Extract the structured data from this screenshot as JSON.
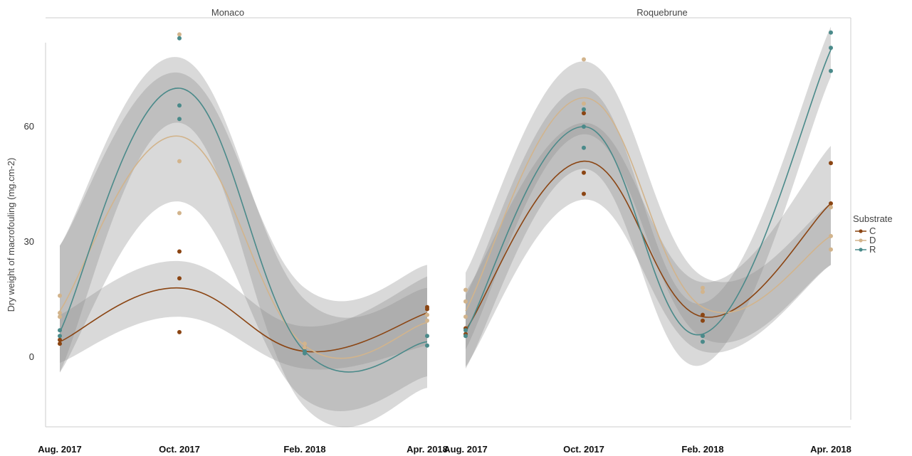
{
  "chart_data": {
    "type": "line",
    "ylabel": "Dry weight of macrofouling (mg.cm-2)",
    "xlabel": "",
    "y_ticks": [
      "0",
      "30",
      "60"
    ],
    "y_tick_values": [
      0,
      30,
      60
    ],
    "ylim": [
      -15,
      82
    ],
    "grid": false,
    "legend": {
      "title": "Substrate",
      "position": "right",
      "entries": [
        {
          "name": "C",
          "color": "#8B4513"
        },
        {
          "name": "D",
          "color": "#D2B48C"
        },
        {
          "name": "R",
          "color": "#4A8A8A"
        }
      ]
    },
    "facets": [
      {
        "label": "Monaco",
        "x_ticks": [
          "Aug. 2017",
          "Oct. 2017",
          "Feb. 2018",
          "Apr. 2018"
        ],
        "series": [
          {
            "name": "C",
            "curve": [
              4,
              18,
              1.5,
              11.5
            ],
            "band_lo": [
              -1.5,
              10.5,
              -3,
              3
            ],
            "band_hi": [
              11,
              25,
              8,
              21
            ],
            "points": [
              [
                0,
                3.5
              ],
              [
                0,
                4.5
              ],
              [
                1,
                6.5
              ],
              [
                1,
                20.5
              ],
              [
                1,
                27.5
              ],
              [
                2,
                1.5
              ],
              [
                2,
                2.5
              ],
              [
                3,
                12.5
              ],
              [
                3,
                13
              ]
            ]
          },
          {
            "name": "D",
            "curve": [
              12,
              57.5,
              3,
              9
            ],
            "band_lo": [
              -4,
              40.5,
              -11,
              -5
            ],
            "band_hi": [
              29,
              74,
              18,
              24
            ],
            "points": [
              [
                0,
                10.5
              ],
              [
                0,
                11.5
              ],
              [
                0,
                16
              ],
              [
                1,
                37.5
              ],
              [
                1,
                51
              ],
              [
                1,
                84
              ],
              [
                2,
                2.5
              ],
              [
                2,
                3.5
              ],
              [
                3,
                9.5
              ],
              [
                3,
                11
              ]
            ]
          },
          {
            "name": "R",
            "curve": [
              6.5,
              70,
              1.5,
              4
            ],
            "band_lo": [
              -4,
              61,
              -13,
              -8
            ],
            "band_hi": [
              29,
              78,
              15,
              18
            ],
            "points": [
              [
                0,
                5.5
              ],
              [
                0,
                7
              ],
              [
                1,
                62
              ],
              [
                1,
                65.5
              ],
              [
                1,
                83
              ],
              [
                2,
                1
              ],
              [
                2,
                1.5
              ],
              [
                3,
                3
              ],
              [
                3,
                5.5
              ]
            ]
          }
        ]
      },
      {
        "label": "Roquebrune",
        "x_ticks": [
          "Aug. 2017",
          "Oct. 2017",
          "Feb. 2018",
          "Apr. 2018"
        ],
        "series": [
          {
            "name": "C",
            "curve": [
              7,
              51,
              10.5,
              40
            ],
            "band_lo": [
              -2.5,
              41,
              1.5,
              24
            ],
            "band_hi": [
              17,
              61,
              19.5,
              55
            ],
            "points": [
              [
                0,
                6
              ],
              [
                0,
                7.5
              ],
              [
                1,
                42.5
              ],
              [
                1,
                48
              ],
              [
                1,
                63.5
              ],
              [
                2,
                9.5
              ],
              [
                2,
                11
              ],
              [
                3,
                40
              ],
              [
                3,
                50.5
              ]
            ]
          },
          {
            "name": "D",
            "curve": [
              12,
              67.5,
              13,
              31.5
            ],
            "band_lo": [
              2,
              58,
              5,
              24
            ],
            "band_hi": [
              22,
              77,
              21,
              40
            ],
            "points": [
              [
                0,
                10.5
              ],
              [
                0,
                14.5
              ],
              [
                0,
                17.5
              ],
              [
                1,
                66
              ],
              [
                1,
                77.5
              ],
              [
                2,
                17
              ],
              [
                2,
                18
              ],
              [
                3,
                28
              ],
              [
                3,
                31.5
              ],
              [
                3,
                39
              ]
            ]
          },
          {
            "name": "R",
            "curve": [
              6.5,
              60,
              6,
              80
            ],
            "band_lo": [
              -3,
              49,
              -2,
              73
            ],
            "band_hi": [
              16,
              70,
              14,
              86
            ],
            "points": [
              [
                0,
                5.5
              ],
              [
                0,
                7
              ],
              [
                1,
                54.5
              ],
              [
                1,
                60
              ],
              [
                1,
                64.5
              ],
              [
                2,
                4
              ],
              [
                2,
                5.5
              ],
              [
                3,
                74.5
              ],
              [
                3,
                80.5
              ],
              [
                3,
                84.5
              ]
            ]
          }
        ]
      }
    ]
  }
}
